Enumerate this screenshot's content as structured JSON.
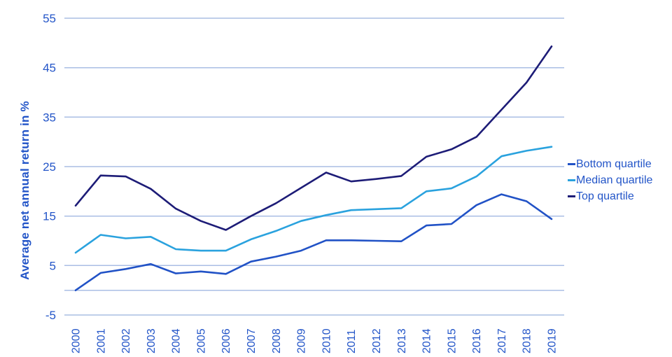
{
  "page": {
    "background": "#ffffff"
  },
  "chart_data": {
    "type": "line",
    "title": "",
    "xlabel": "",
    "ylabel": "Average net annual return in %",
    "x": [
      2000,
      2001,
      2002,
      2003,
      2004,
      2005,
      2006,
      2007,
      2008,
      2009,
      2010,
      2011,
      2012,
      2013,
      2014,
      2015,
      2016,
      2017,
      2018,
      2019
    ],
    "series": [
      {
        "name": "Bottom quartile",
        "color": "#2152c6",
        "values": [
          0,
          3.5,
          4.3,
          5.3,
          3.4,
          3.8,
          3.3,
          5.8,
          6.8,
          8.0,
          10.1,
          10.1,
          10.0,
          9.9,
          13.1,
          13.4,
          17.2,
          19.4,
          18.0,
          14.4
        ]
      },
      {
        "name": "Median quartile",
        "color": "#2aa2de",
        "values": [
          7.6,
          11.2,
          10.5,
          10.8,
          8.3,
          8.0,
          8.0,
          10.3,
          12.0,
          14.0,
          15.2,
          16.2,
          16.4,
          16.6,
          20.0,
          20.6,
          23.0,
          27.1,
          28.2,
          29.0
        ]
      },
      {
        "name": "Top quartile",
        "color": "#1d1c77",
        "values": [
          17.1,
          23.2,
          23.0,
          20.5,
          16.5,
          14.0,
          12.2,
          15.0,
          17.6,
          20.7,
          23.8,
          22.0,
          22.5,
          23.1,
          27.0,
          28.5,
          31.0,
          36.5,
          42.0,
          49.3
        ]
      }
    ],
    "ylim": [
      -5,
      55
    ],
    "yticks": [
      55,
      45,
      35,
      25,
      15,
      5,
      -5
    ],
    "gridlines": [
      55,
      45,
      35,
      25,
      15,
      5,
      0,
      -5
    ],
    "grid_on": true,
    "legend_position": "right",
    "colors": {
      "grid": "#aabee4",
      "axis_text": "#2355c8"
    }
  }
}
